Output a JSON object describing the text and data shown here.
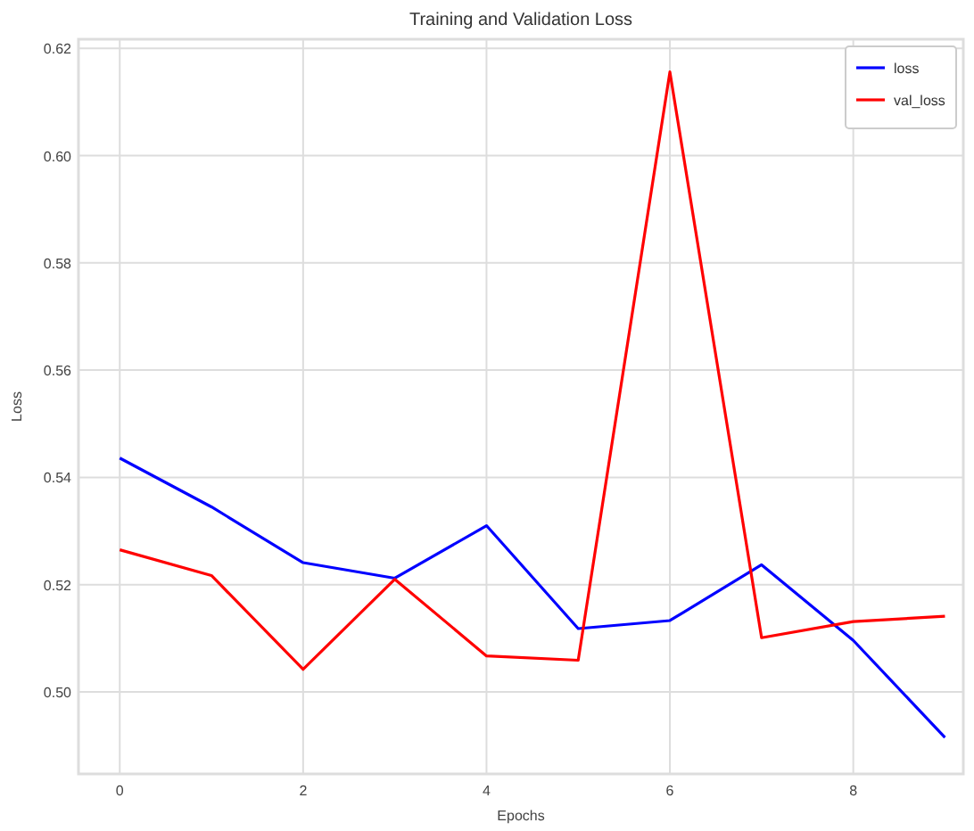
{
  "chart_data": {
    "type": "line",
    "title": "Training and Validation Loss",
    "xlabel": "Epochs",
    "ylabel": "Loss",
    "x": [
      0,
      1,
      2,
      3,
      4,
      5,
      6,
      7,
      8,
      9
    ],
    "series": [
      {
        "name": "loss",
        "color": "#0000ff",
        "values": [
          0.5436,
          0.5345,
          0.5241,
          0.5212,
          0.531,
          0.5118,
          0.5133,
          0.5237,
          0.5096,
          0.4915
        ]
      },
      {
        "name": "val_loss",
        "color": "#ff0000",
        "values": [
          0.5265,
          0.5217,
          0.5042,
          0.521,
          0.5067,
          0.5059,
          0.6156,
          0.5101,
          0.5131,
          0.5141
        ]
      }
    ],
    "xlim": [
      -0.45,
      9.2
    ],
    "ylim": [
      0.4847,
      0.6217
    ],
    "xticks": [
      0,
      2,
      4,
      6,
      8
    ],
    "yticks": [
      {
        "value": 0.5,
        "label": "0.50"
      },
      {
        "value": 0.52,
        "label": "0.52"
      },
      0.54,
      0.56,
      0.58,
      {
        "value": 0.6,
        "label": "0.60"
      },
      0.62
    ],
    "grid": true,
    "legend": "top right",
    "marker": "none",
    "line_style": "solid"
  }
}
